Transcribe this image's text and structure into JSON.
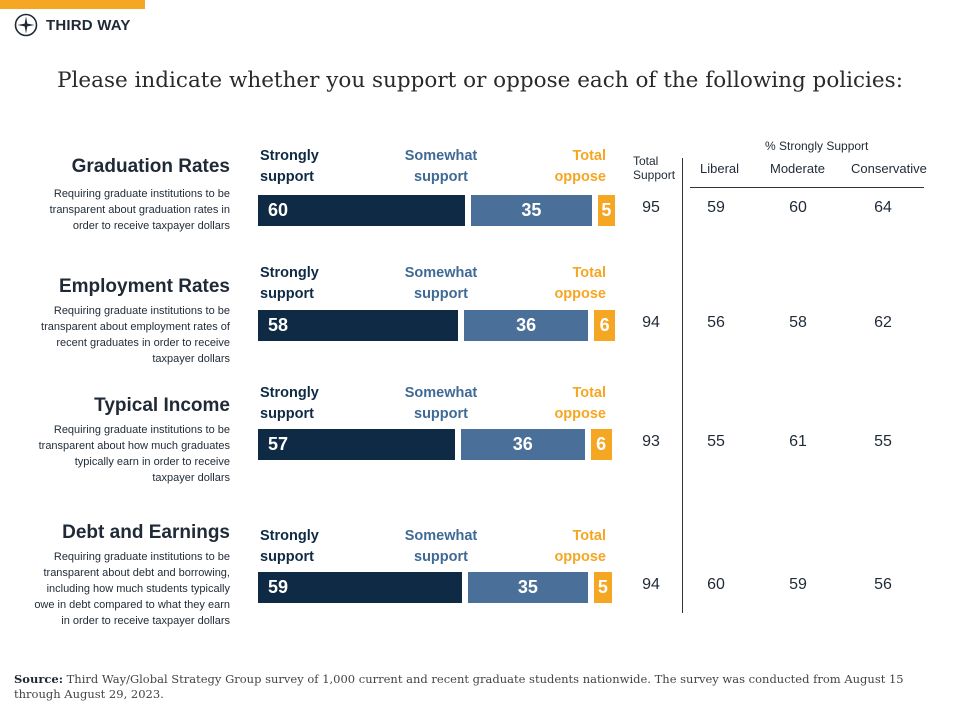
{
  "brand": {
    "name": "THIRD WAY",
    "accent": "#f5a623"
  },
  "title": "Please indicate whether you support or oppose each of the following policies:",
  "headers": {
    "strongly": [
      "Strongly",
      "support"
    ],
    "somewhat": [
      "Somewhat",
      "support"
    ],
    "oppose": [
      "Total",
      "oppose"
    ],
    "total_support": [
      "Total",
      "Support"
    ],
    "strongly_support_group": "% Strongly Support",
    "liberal": "Liberal",
    "moderate": "Moderate",
    "conservative": "Conservative"
  },
  "colors": {
    "strongly": "#0e2a44",
    "somewhat": "#4a6f99",
    "oppose": "#f5a623"
  },
  "chart_data": {
    "type": "bar",
    "orientation": "horizontal-stacked",
    "categories": [
      "Graduation Rates",
      "Employment Rates",
      "Typical Income",
      "Debt and Earnings"
    ],
    "descriptions": [
      "Requiring graduate institutions to be transparent about graduation rates in order to receive taxpayer dollars",
      "Requiring graduate institutions to be transparent about employment rates of recent graduates in order to receive taxpayer dollars",
      "Requiring graduate institutions to be transparent about how much graduates typically earn in order to receive taxpayer dollars",
      "Requiring graduate institutions to be transparent about debt and borrowing, including how much students typically owe in debt compared to what they earn in order to receive taxpayer dollars"
    ],
    "series": [
      {
        "name": "Strongly support",
        "values": [
          60,
          58,
          57,
          59
        ]
      },
      {
        "name": "Somewhat support",
        "values": [
          35,
          36,
          36,
          35
        ]
      },
      {
        "name": "Total oppose",
        "values": [
          5,
          6,
          6,
          5
        ]
      }
    ],
    "table": {
      "columns": [
        "Total Support",
        "Liberal",
        "Moderate",
        "Conservative"
      ],
      "rows": [
        [
          95,
          59,
          60,
          64
        ],
        [
          94,
          56,
          58,
          62
        ],
        [
          93,
          55,
          61,
          55
        ],
        [
          94,
          60,
          59,
          56
        ]
      ]
    }
  },
  "source": {
    "label": "Source:",
    "text": "Third Way/Global Strategy Group survey of 1,000 current and recent graduate students nationwide. The survey was conducted from August 15 through August 29, 2023."
  }
}
